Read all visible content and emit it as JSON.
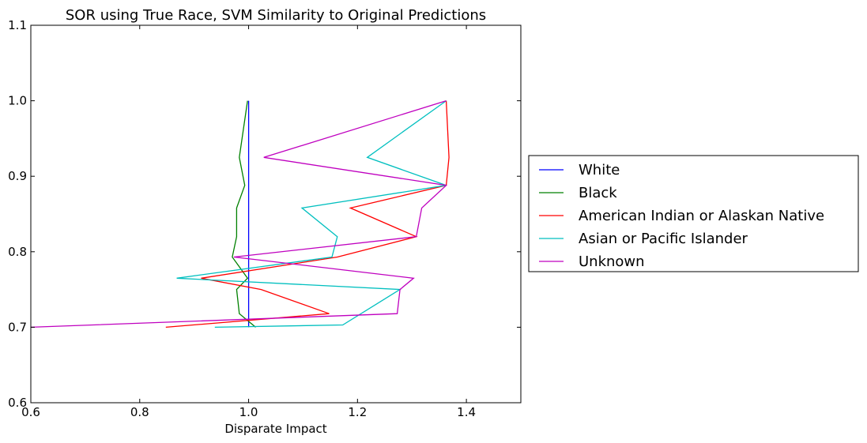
{
  "chart_data": {
    "type": "line",
    "title": "SOR using True Race, SVM Similarity to Original Predictions",
    "xlabel": "Disparate Impact",
    "ylabel": "",
    "xlim": [
      0.6,
      1.5
    ],
    "ylim": [
      0.6,
      1.1
    ],
    "xticks": [
      "0.6",
      "0.8",
      "1.0",
      "1.2",
      "1.4"
    ],
    "yticks": [
      "0.6",
      "0.7",
      "0.8",
      "0.9",
      "1.0",
      "1.1"
    ],
    "grid": false,
    "legend_position": "right-outside",
    "series": [
      {
        "name": "White",
        "color": "#0000ff",
        "x": [
          1.0,
          1.0,
          1.0,
          1.0,
          1.0,
          1.0,
          1.0,
          1.0,
          1.0,
          1.0,
          1.0,
          1.0,
          1.0
        ],
        "y": [
          1.0,
          0.925,
          0.888,
          0.858,
          0.82,
          0.793,
          0.765,
          0.75,
          0.718,
          0.703,
          0.7,
          0.7,
          0.7
        ]
      },
      {
        "name": "Black",
        "color": "#008000",
        "x": [
          0.998,
          0.983,
          0.993,
          0.978,
          0.978,
          0.97,
          0.998,
          0.978,
          0.983,
          1.013
        ],
        "y": [
          1.0,
          0.925,
          0.888,
          0.858,
          0.82,
          0.793,
          0.765,
          0.75,
          0.718,
          0.7
        ]
      },
      {
        "name": "American Indian or Alaskan Native",
        "color": "#ff0000",
        "x": [
          1.363,
          1.368,
          1.363,
          1.187,
          1.308,
          1.163,
          0.913,
          1.023,
          1.148,
          0.848
        ],
        "y": [
          1.0,
          0.925,
          0.888,
          0.858,
          0.82,
          0.793,
          0.765,
          0.75,
          0.718,
          0.7
        ]
      },
      {
        "name": "Asian or Pacific Islander",
        "color": "#00bfbf",
        "x": [
          1.363,
          1.218,
          1.363,
          1.098,
          1.163,
          1.153,
          0.868,
          1.278,
          1.173,
          0.938
        ],
        "y": [
          1.0,
          0.925,
          0.888,
          0.858,
          0.82,
          0.793,
          0.765,
          0.75,
          0.703,
          0.7
        ]
      },
      {
        "name": "Unknown",
        "color": "#bf00bf",
        "x": [
          1.363,
          1.028,
          1.363,
          1.318,
          1.308,
          0.973,
          1.303,
          1.278,
          1.273,
          0.6
        ],
        "y": [
          1.0,
          0.925,
          0.888,
          0.858,
          0.82,
          0.793,
          0.765,
          0.75,
          0.718,
          0.7
        ]
      }
    ]
  }
}
